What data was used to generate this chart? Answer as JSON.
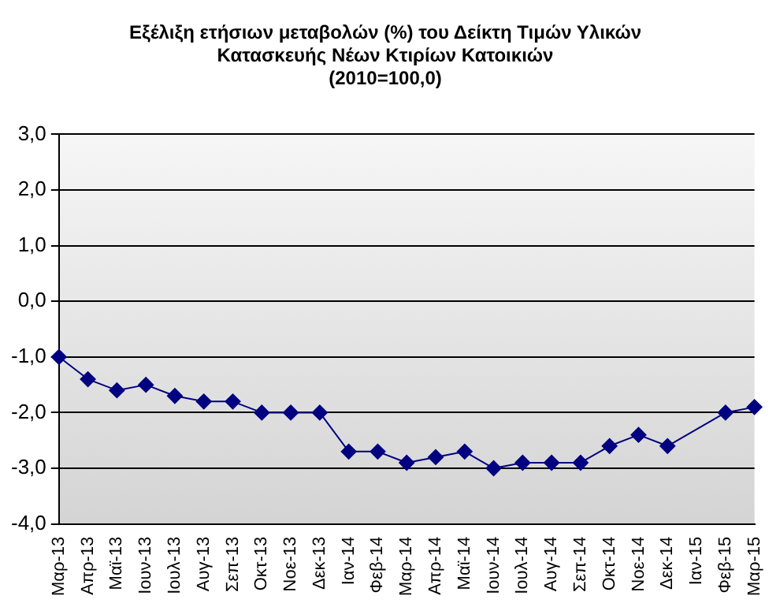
{
  "chart_data": {
    "type": "line",
    "title": [
      "Εξέλιξη ετήσιων μεταβολών (%) του Δείκτη Τιμών Υλικών",
      "Κατασκευής Νέων Κτιρίων Κατοικιών",
      "(2010=100,0)"
    ],
    "categories": [
      "Μαρ-13",
      "Απρ-13",
      "Μαϊ-13",
      "Ιουν-13",
      "Ιουλ-13",
      "Αυγ-13",
      "Σεπ-13",
      "Οκτ-13",
      "Νοε-13",
      "Δεκ-13",
      "Ιαν-14",
      "Φεβ-14",
      "Μαρ-14",
      "Απρ-14",
      "Μαϊ-14",
      "Ιουν-14",
      "Ιουλ-14",
      "Αυγ-14",
      "Σεπ-14",
      "Οκτ-14",
      "Νοε-14",
      "Δεκ-14",
      "Ιαν-15",
      "Φεβ-15",
      "Μαρ-15"
    ],
    "series": [
      {
        "color": "#000080",
        "values": [
          -1.0,
          -1.4,
          -1.6,
          -1.5,
          -1.7,
          -1.8,
          -1.8,
          -2.0,
          -2.0,
          -2.0,
          -2.7,
          -2.7,
          -2.9,
          -2.8,
          -2.7,
          -3.0,
          -2.9,
          -2.9,
          -2.9,
          -2.6,
          -2.4,
          -2.6,
          null,
          -2.0,
          -1.9
        ]
      }
    ],
    "ylim": [
      -4,
      3
    ],
    "yticks": [
      {
        "value": -4,
        "label": "-4,0"
      },
      {
        "value": -3,
        "label": "-3,0"
      },
      {
        "value": -2,
        "label": "-2,0"
      },
      {
        "value": -1,
        "label": "-1,0"
      },
      {
        "value": 0,
        "label": "0,0"
      },
      {
        "value": 1,
        "label": "1,0"
      },
      {
        "value": 2,
        "label": "2,0"
      },
      {
        "value": 3,
        "label": "3,0"
      }
    ],
    "grid": "y",
    "legend": false,
    "marker": "diamond",
    "line_style": "solid"
  }
}
